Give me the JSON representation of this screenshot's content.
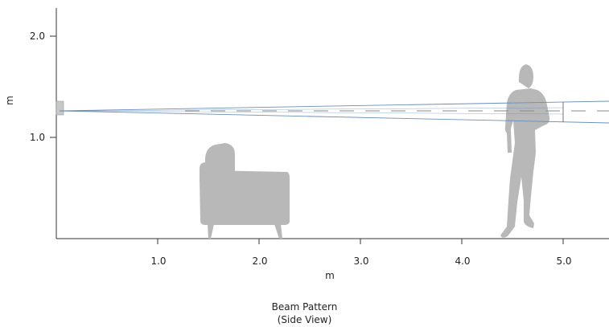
{
  "figure": {
    "caption_title": "Beam Pattern",
    "caption_subtitle": "(Side View)"
  },
  "axes": {
    "x": {
      "label": "m",
      "ticks": [
        "1.0",
        "2.0",
        "3.0",
        "4.0",
        "5.0"
      ]
    },
    "y": {
      "label": "m",
      "ticks": [
        "1.0",
        "2.0"
      ]
    }
  },
  "colors": {
    "axis": "#333333",
    "silhouette": "#b8b8b8",
    "beam": "#6a8fb8",
    "beam_center": "#8a8a8a",
    "sensor": "#c8c8c8"
  },
  "scene": {
    "objects": [
      "sensor",
      "armchair",
      "person"
    ]
  }
}
